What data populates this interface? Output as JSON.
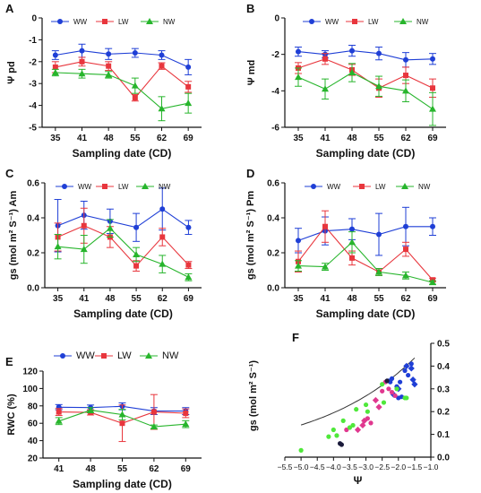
{
  "colors": {
    "WW": "#1f3fd6",
    "LW": "#e8363d",
    "NW": "#27b52c",
    "pink": "#e0388f",
    "lime": "#4fe83a"
  },
  "chart_data": [
    {
      "panel": "A",
      "type": "line",
      "xlabel": "Sampling date (CD)",
      "ylabel": "Ψ pd",
      "categories": [
        "35",
        "41",
        "48",
        "55",
        "62",
        "69"
      ],
      "ylim": [
        -5,
        0
      ],
      "yticks": [
        -5,
        -4,
        -3,
        -2,
        -1,
        0
      ],
      "legend": "top-center",
      "legend_entries": [
        "WW",
        "LW",
        "NW"
      ],
      "series": [
        {
          "name": "WW",
          "values": [
            -1.7,
            -1.5,
            -1.65,
            -1.6,
            -1.7,
            -2.25
          ],
          "err": [
            0.2,
            0.3,
            0.25,
            0.2,
            0.2,
            0.35
          ]
        },
        {
          "name": "LW",
          "values": [
            -2.25,
            -2.0,
            -2.2,
            -3.65,
            -2.2,
            -3.15
          ],
          "err": [
            0.25,
            0.2,
            0.2,
            0.15,
            0.15,
            0.25
          ]
        },
        {
          "name": "NW",
          "values": [
            -2.5,
            -2.55,
            -2.6,
            -3.1,
            -4.15,
            -3.9
          ],
          "err": [
            0.15,
            0.2,
            0.15,
            0.35,
            0.55,
            0.45
          ]
        }
      ]
    },
    {
      "panel": "B",
      "type": "line",
      "xlabel": "Sampling date (CD)",
      "ylabel": "Ψ md",
      "categories": [
        "35",
        "41",
        "48",
        "55",
        "62",
        "69"
      ],
      "ylim": [
        -6,
        0
      ],
      "yticks": [
        -6,
        -4,
        -2,
        0
      ],
      "legend": "top-center",
      "legend_entries": [
        "WW",
        "LW",
        "NW"
      ],
      "series": [
        {
          "name": "WW",
          "values": [
            -1.85,
            -2.0,
            -1.8,
            -1.95,
            -2.3,
            -2.25
          ],
          "err": [
            0.25,
            0.2,
            0.3,
            0.35,
            0.4,
            0.3
          ]
        },
        {
          "name": "LW",
          "values": [
            -2.75,
            -2.25,
            -2.85,
            -3.85,
            -3.15,
            -3.85
          ],
          "err": [
            0.3,
            0.3,
            0.3,
            0.5,
            0.45,
            0.5
          ]
        },
        {
          "name": "NW",
          "values": [
            -3.25,
            -3.9,
            -3.0,
            -3.75,
            -4.0,
            -5.0
          ],
          "err": [
            0.5,
            0.55,
            0.5,
            0.55,
            0.6,
            0.9
          ]
        }
      ]
    },
    {
      "panel": "C",
      "type": "line",
      "xlabel": "Sampling date (CD)",
      "ylabel": "gs (mol m² S⁻¹) Am",
      "categories": [
        "35",
        "41",
        "48",
        "55",
        "62",
        "69"
      ],
      "ylim": [
        0,
        0.6
      ],
      "yticks": [
        0.0,
        0.2,
        0.4,
        0.6
      ],
      "legend": "top-center",
      "legend_entries": [
        "WW",
        "LW",
        "NW"
      ],
      "series": [
        {
          "name": "WW",
          "values": [
            0.355,
            0.415,
            0.38,
            0.345,
            0.45,
            0.345
          ],
          "err": [
            0.15,
            0.08,
            0.07,
            0.08,
            0.12,
            0.04
          ]
        },
        {
          "name": "LW",
          "values": [
            0.29,
            0.355,
            0.29,
            0.125,
            0.29,
            0.13
          ],
          "err": [
            0.08,
            0.1,
            0.06,
            0.03,
            0.05,
            0.02
          ]
        },
        {
          "name": "NW",
          "values": [
            0.235,
            0.22,
            0.34,
            0.19,
            0.135,
            0.06
          ],
          "err": [
            0.07,
            0.08,
            0.05,
            0.04,
            0.05,
            0.02
          ]
        }
      ]
    },
    {
      "panel": "D",
      "type": "line",
      "xlabel": "Sampling date (CD)",
      "ylabel": "gs (mol m² S⁻¹) Pm",
      "categories": [
        "35",
        "41",
        "48",
        "55",
        "62",
        "69"
      ],
      "ylim": [
        0,
        0.6
      ],
      "yticks": [
        0.0,
        0.2,
        0.4,
        0.6
      ],
      "legend": "top-center",
      "legend_entries": [
        "WW",
        "LW",
        "NW"
      ],
      "series": [
        {
          "name": "WW",
          "values": [
            0.27,
            0.325,
            0.335,
            0.305,
            0.35,
            0.35
          ],
          "err": [
            0.07,
            0.08,
            0.06,
            0.12,
            0.11,
            0.05
          ]
        },
        {
          "name": "LW",
          "values": [
            0.15,
            0.35,
            0.17,
            0.09,
            0.22,
            0.045
          ],
          "err": [
            0.06,
            0.09,
            0.04,
            0.02,
            0.04,
            0.01
          ]
        },
        {
          "name": "NW",
          "values": [
            0.125,
            0.12,
            0.26,
            0.09,
            0.07,
            0.03
          ],
          "err": [
            0.03,
            0.02,
            0.06,
            0.02,
            0.02,
            0.01
          ]
        }
      ]
    },
    {
      "panel": "E",
      "type": "line",
      "xlabel": "Sampling date (CD)",
      "ylabel": "RWC (%)",
      "categories": [
        "41",
        "48",
        "55",
        "62",
        "69"
      ],
      "ylim": [
        20,
        120
      ],
      "yticks": [
        20,
        40,
        60,
        80,
        100,
        120
      ],
      "legend": "top-center",
      "legend_entries": [
        "WW",
        "LW",
        "NW"
      ],
      "series": [
        {
          "name": "WW",
          "values": [
            78.5,
            78,
            79.5,
            74,
            74
          ],
          "err": [
            3,
            3,
            4,
            4,
            4
          ]
        },
        {
          "name": "LW",
          "values": [
            73,
            72.5,
            60,
            73,
            71.5
          ],
          "err": [
            4,
            3,
            21,
            20,
            5
          ]
        },
        {
          "name": "NW",
          "values": [
            62.5,
            75,
            70,
            56,
            59
          ],
          "err": [
            4,
            3,
            6,
            2,
            4
          ]
        }
      ]
    },
    {
      "panel": "F",
      "type": "scatter",
      "xlabel": "Ψ",
      "ylabel": "gs (mol m² S⁻¹)",
      "xlim": [
        -5.5,
        -1.0
      ],
      "xticks": [
        -5.5,
        -5.0,
        -4.5,
        -4.0,
        -3.5,
        -3.0,
        -2.5,
        -2.0,
        -1.5,
        -1.0
      ],
      "ylim": [
        0,
        0.5
      ],
      "yticks": [
        0.0,
        0.1,
        0.2,
        0.3,
        0.4,
        0.5
      ],
      "fit_curve": {
        "a": 0.7063,
        "b": 0.3219,
        "x": [
          -5.0,
          -4.5,
          -4.0,
          -3.5,
          -3.0,
          -2.5,
          -2.0,
          -1.5
        ]
      },
      "groups": [
        {
          "color": "blue",
          "shape": "circle",
          "points": [
            [
              -2.3,
              0.335
            ],
            [
              -2.2,
              0.345
            ],
            [
              -2.05,
              0.31
            ],
            [
              -1.95,
              0.33
            ],
            [
              -1.8,
              0.38
            ],
            [
              -2.0,
              0.26
            ],
            [
              -1.9,
              0.265
            ],
            [
              -2.25,
              0.33
            ],
            [
              -1.6,
              0.41
            ],
            [
              -1.7,
              0.36
            ]
          ]
        },
        {
          "color": "blue",
          "shape": "diamond",
          "points": [
            [
              -1.55,
              0.34
            ],
            [
              -1.5,
              0.32
            ],
            [
              -1.6,
              0.39
            ],
            [
              -1.75,
              0.4
            ],
            [
              -2.15,
              0.275
            ],
            [
              -2.0,
              0.3
            ]
          ]
        },
        {
          "color": "pink",
          "shape": "circle",
          "points": [
            [
              -2.85,
              0.15
            ],
            [
              -2.4,
              0.33
            ],
            [
              -2.3,
              0.3
            ],
            [
              -2.1,
              0.27
            ],
            [
              -2.5,
              0.29
            ],
            [
              -2.2,
              0.285
            ],
            [
              -3.6,
              0.12
            ],
            [
              -2.95,
              0.17
            ]
          ]
        },
        {
          "color": "pink",
          "shape": "diamond",
          "points": [
            [
              -3.1,
              0.14
            ],
            [
              -2.6,
              0.22
            ],
            [
              -2.7,
              0.25
            ],
            [
              -3.25,
              0.12
            ],
            [
              -3.05,
              0.16
            ]
          ]
        },
        {
          "color": "lime",
          "shape": "circle",
          "points": [
            [
              -5.0,
              0.03
            ],
            [
              -4.0,
              0.12
            ],
            [
              -4.15,
              0.09
            ],
            [
              -3.9,
              0.095
            ],
            [
              -3.3,
              0.21
            ],
            [
              -3.4,
              0.14
            ],
            [
              -3.0,
              0.23
            ],
            [
              -2.95,
              0.2
            ],
            [
              -2.5,
              0.32
            ],
            [
              -2.45,
              0.24
            ],
            [
              -2.05,
              0.3
            ],
            [
              -1.8,
              0.26
            ],
            [
              -1.75,
              0.26
            ],
            [
              -3.7,
              0.16
            ],
            [
              -3.5,
              0.13
            ]
          ]
        },
        {
          "color": "dark",
          "shape": "circle",
          "points": [
            [
              -3.8,
              0.06
            ],
            [
              -3.75,
              0.055
            ],
            [
              -2.35,
              0.335
            ]
          ]
        }
      ]
    }
  ]
}
